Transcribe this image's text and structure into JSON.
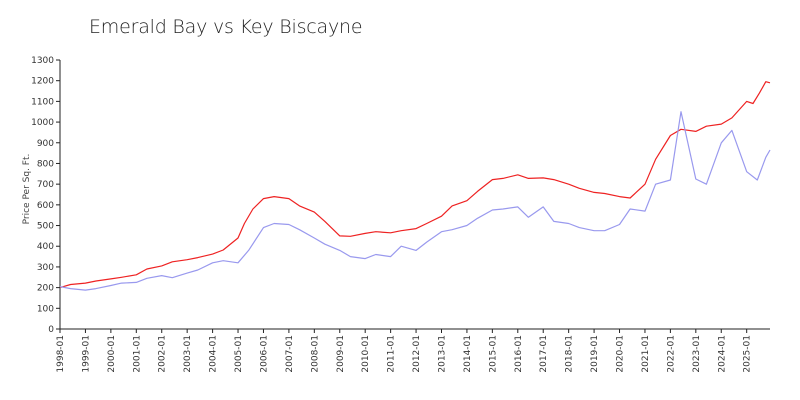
{
  "chart_data": {
    "type": "line",
    "title": "Emerald Bay vs Key Biscayne",
    "xlabel": "",
    "ylabel": "Price Per Sq. Ft.",
    "x_tick_labels": [
      "1998-01",
      "1999-01",
      "2000-01",
      "2001-01",
      "2002-01",
      "2003-01",
      "2004-01",
      "2005-01",
      "2006-01",
      "2007-01",
      "2008-01",
      "2009-01",
      "2010-01",
      "2011-01",
      "2012-01",
      "2013-01",
      "2014-01",
      "2015-01",
      "2016-01",
      "2017-01",
      "2018-01",
      "2019-01",
      "2020-01",
      "2021-01",
      "2022-01",
      "2023-01",
      "2024-01",
      "2025-01"
    ],
    "y_tick_labels": [
      "0",
      "100",
      "200",
      "300",
      "400",
      "500",
      "600",
      "700",
      "800",
      "900",
      "1000",
      "1100",
      "1200",
      "1300"
    ],
    "ylim": [
      0,
      1300
    ],
    "xlim": [
      "1998-01",
      "2025-12"
    ],
    "grid": false,
    "legend": "none",
    "series": [
      {
        "color": "#ee2222",
        "points": [
          [
            "1998-01",
            200
          ],
          [
            "1998-06",
            215
          ],
          [
            "1999-01",
            222
          ],
          [
            "1999-06",
            232
          ],
          [
            "2000-01",
            242
          ],
          [
            "2000-06",
            250
          ],
          [
            "2001-01",
            262
          ],
          [
            "2001-06",
            290
          ],
          [
            "2002-01",
            305
          ],
          [
            "2002-06",
            325
          ],
          [
            "2003-01",
            335
          ],
          [
            "2003-06",
            345
          ],
          [
            "2004-01",
            362
          ],
          [
            "2004-06",
            382
          ],
          [
            "2005-01",
            440
          ],
          [
            "2005-04",
            510
          ],
          [
            "2005-08",
            580
          ],
          [
            "2006-01",
            630
          ],
          [
            "2006-06",
            640
          ],
          [
            "2007-01",
            630
          ],
          [
            "2007-06",
            595
          ],
          [
            "2008-01",
            565
          ],
          [
            "2008-06",
            520
          ],
          [
            "2009-01",
            450
          ],
          [
            "2009-06",
            448
          ],
          [
            "2010-01",
            462
          ],
          [
            "2010-06",
            470
          ],
          [
            "2011-01",
            465
          ],
          [
            "2011-06",
            475
          ],
          [
            "2012-01",
            485
          ],
          [
            "2012-06",
            510
          ],
          [
            "2013-01",
            545
          ],
          [
            "2013-06",
            595
          ],
          [
            "2014-01",
            620
          ],
          [
            "2014-06",
            665
          ],
          [
            "2015-01",
            722
          ],
          [
            "2015-06",
            728
          ],
          [
            "2016-01",
            745
          ],
          [
            "2016-06",
            728
          ],
          [
            "2017-01",
            730
          ],
          [
            "2017-06",
            722
          ],
          [
            "2018-01",
            700
          ],
          [
            "2018-06",
            680
          ],
          [
            "2019-01",
            660
          ],
          [
            "2019-06",
            655
          ],
          [
            "2020-01",
            640
          ],
          [
            "2020-06",
            633
          ],
          [
            "2021-01",
            700
          ],
          [
            "2021-06",
            820
          ],
          [
            "2022-01",
            935
          ],
          [
            "2022-06",
            965
          ],
          [
            "2023-01",
            955
          ],
          [
            "2023-06",
            980
          ],
          [
            "2024-01",
            990
          ],
          [
            "2024-06",
            1020
          ],
          [
            "2025-01",
            1100
          ],
          [
            "2025-04",
            1090
          ],
          [
            "2025-07",
            1140
          ],
          [
            "2025-10",
            1195
          ],
          [
            "2025-12",
            1190
          ]
        ]
      },
      {
        "color": "#9999ee",
        "points": [
          [
            "1998-01",
            205
          ],
          [
            "1998-06",
            195
          ],
          [
            "1999-01",
            188
          ],
          [
            "1999-06",
            195
          ],
          [
            "2000-01",
            210
          ],
          [
            "2000-06",
            222
          ],
          [
            "2001-01",
            225
          ],
          [
            "2001-06",
            245
          ],
          [
            "2002-01",
            258
          ],
          [
            "2002-06",
            248
          ],
          [
            "2003-01",
            270
          ],
          [
            "2003-06",
            285
          ],
          [
            "2004-01",
            320
          ],
          [
            "2004-06",
            330
          ],
          [
            "2005-01",
            320
          ],
          [
            "2005-06",
            380
          ],
          [
            "2006-01",
            490
          ],
          [
            "2006-06",
            510
          ],
          [
            "2007-01",
            505
          ],
          [
            "2007-06",
            480
          ],
          [
            "2008-01",
            440
          ],
          [
            "2008-06",
            410
          ],
          [
            "2009-01",
            380
          ],
          [
            "2009-06",
            350
          ],
          [
            "2010-01",
            340
          ],
          [
            "2010-06",
            360
          ],
          [
            "2011-01",
            350
          ],
          [
            "2011-06",
            400
          ],
          [
            "2012-01",
            380
          ],
          [
            "2012-06",
            420
          ],
          [
            "2013-01",
            470
          ],
          [
            "2013-06",
            480
          ],
          [
            "2014-01",
            500
          ],
          [
            "2014-06",
            535
          ],
          [
            "2015-01",
            575
          ],
          [
            "2015-06",
            580
          ],
          [
            "2016-01",
            590
          ],
          [
            "2016-06",
            540
          ],
          [
            "2017-01",
            590
          ],
          [
            "2017-06",
            520
          ],
          [
            "2018-01",
            510
          ],
          [
            "2018-06",
            490
          ],
          [
            "2019-01",
            475
          ],
          [
            "2019-06",
            475
          ],
          [
            "2020-01",
            505
          ],
          [
            "2020-06",
            580
          ],
          [
            "2021-01",
            570
          ],
          [
            "2021-06",
            700
          ],
          [
            "2022-01",
            720
          ],
          [
            "2022-06",
            1050
          ],
          [
            "2023-01",
            725
          ],
          [
            "2023-06",
            700
          ],
          [
            "2024-01",
            900
          ],
          [
            "2024-06",
            960
          ],
          [
            "2025-01",
            760
          ],
          [
            "2025-06",
            720
          ],
          [
            "2025-10",
            830
          ],
          [
            "2025-12",
            865
          ]
        ]
      }
    ]
  }
}
